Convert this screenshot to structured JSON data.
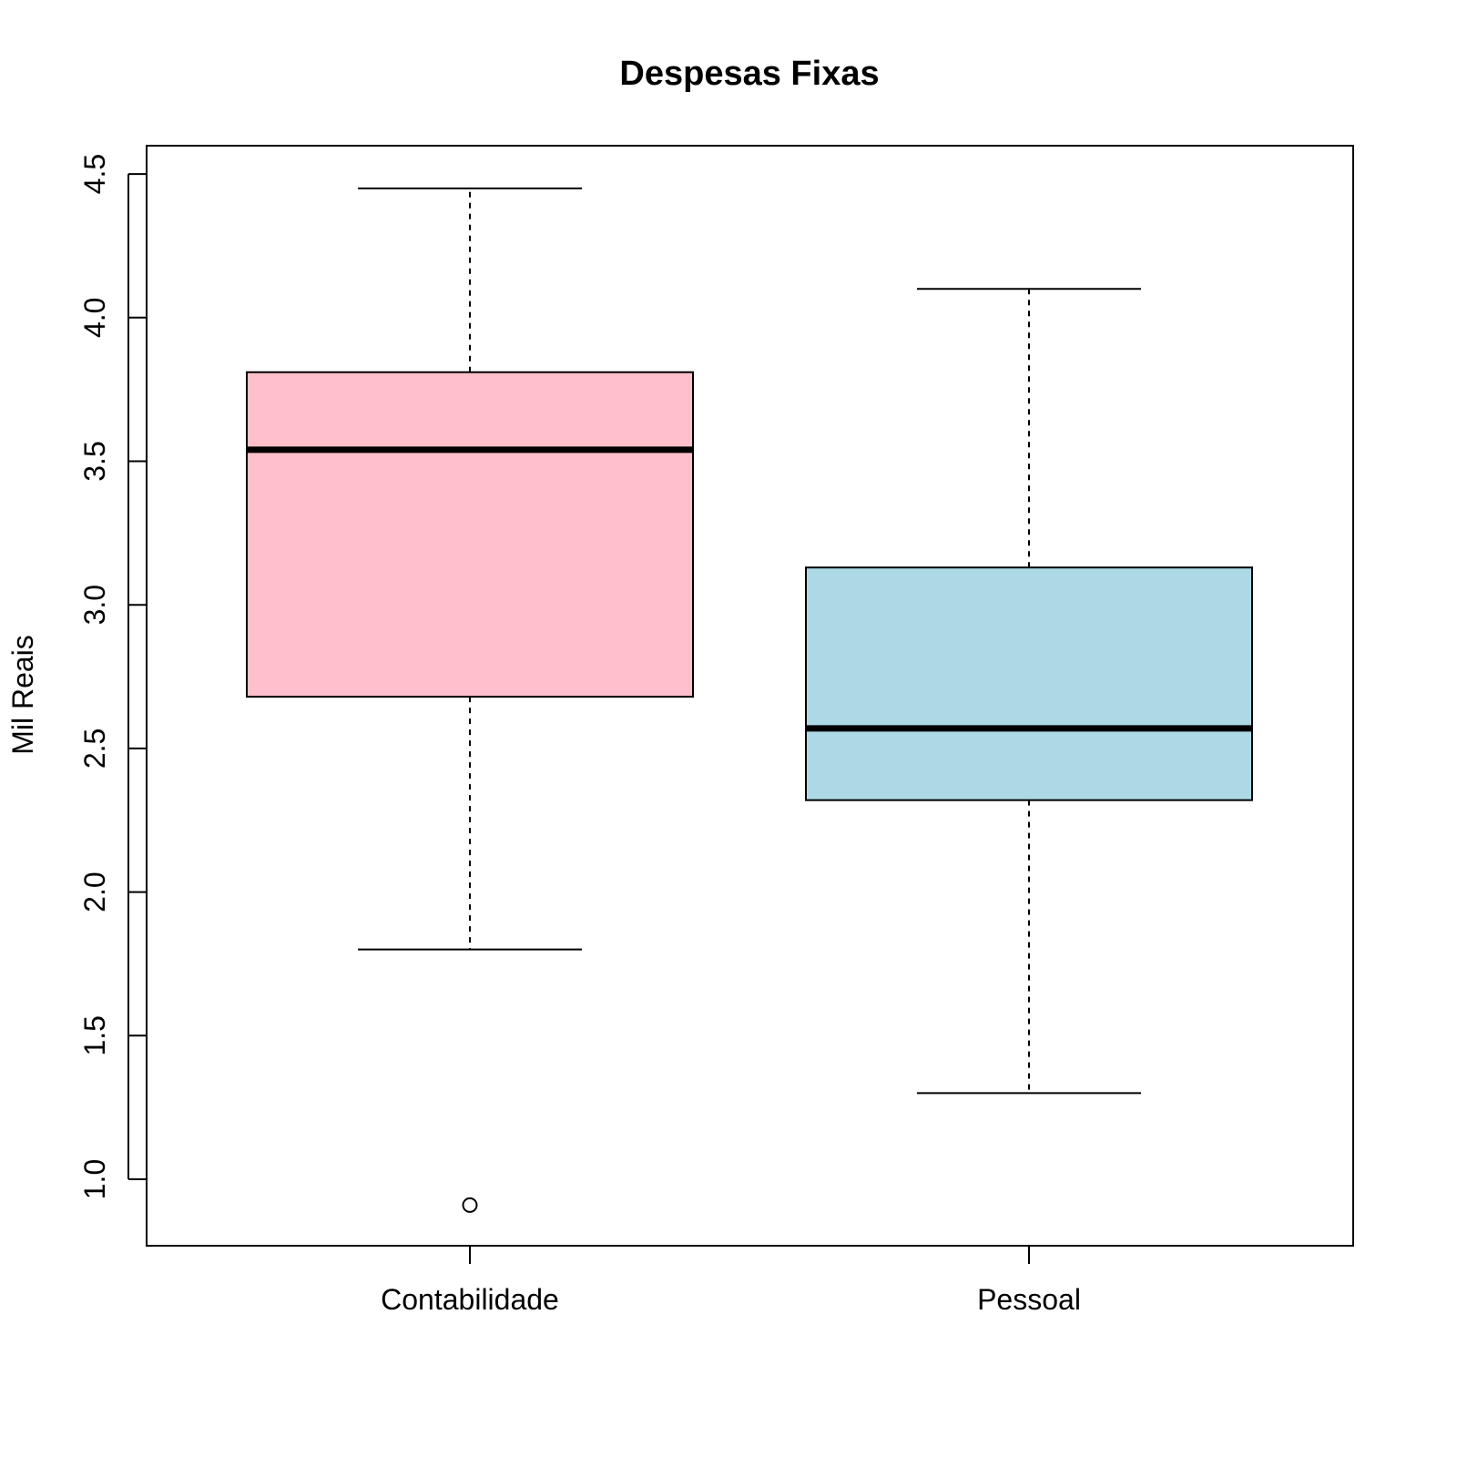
{
  "chart_data": {
    "type": "boxplot",
    "title": "Despesas Fixas",
    "xlabel": "",
    "ylabel": "Mil Reais",
    "ylim": [
      0.77,
      4.6
    ],
    "yticks": [
      1.0,
      1.5,
      2.0,
      2.5,
      3.0,
      3.5,
      4.0,
      4.5
    ],
    "ytick_labels": [
      "1.0",
      "1.5",
      "2.0",
      "2.5",
      "3.0",
      "3.5",
      "4.0",
      "4.5"
    ],
    "grid": false,
    "categories": [
      "Contabilidade",
      "Pessoal"
    ],
    "boxes": [
      {
        "category": "Contabilidade",
        "whisker_low": 1.8,
        "q1": 2.68,
        "median": 3.54,
        "q3": 3.81,
        "whisker_high": 4.45,
        "outliers": [
          0.91
        ],
        "color": "#FFC0CB"
      },
      {
        "category": "Pessoal",
        "whisker_low": 1.3,
        "q1": 2.32,
        "median": 2.57,
        "q3": 3.13,
        "whisker_high": 4.1,
        "outliers": [],
        "color": "#ADD8E6"
      }
    ]
  }
}
